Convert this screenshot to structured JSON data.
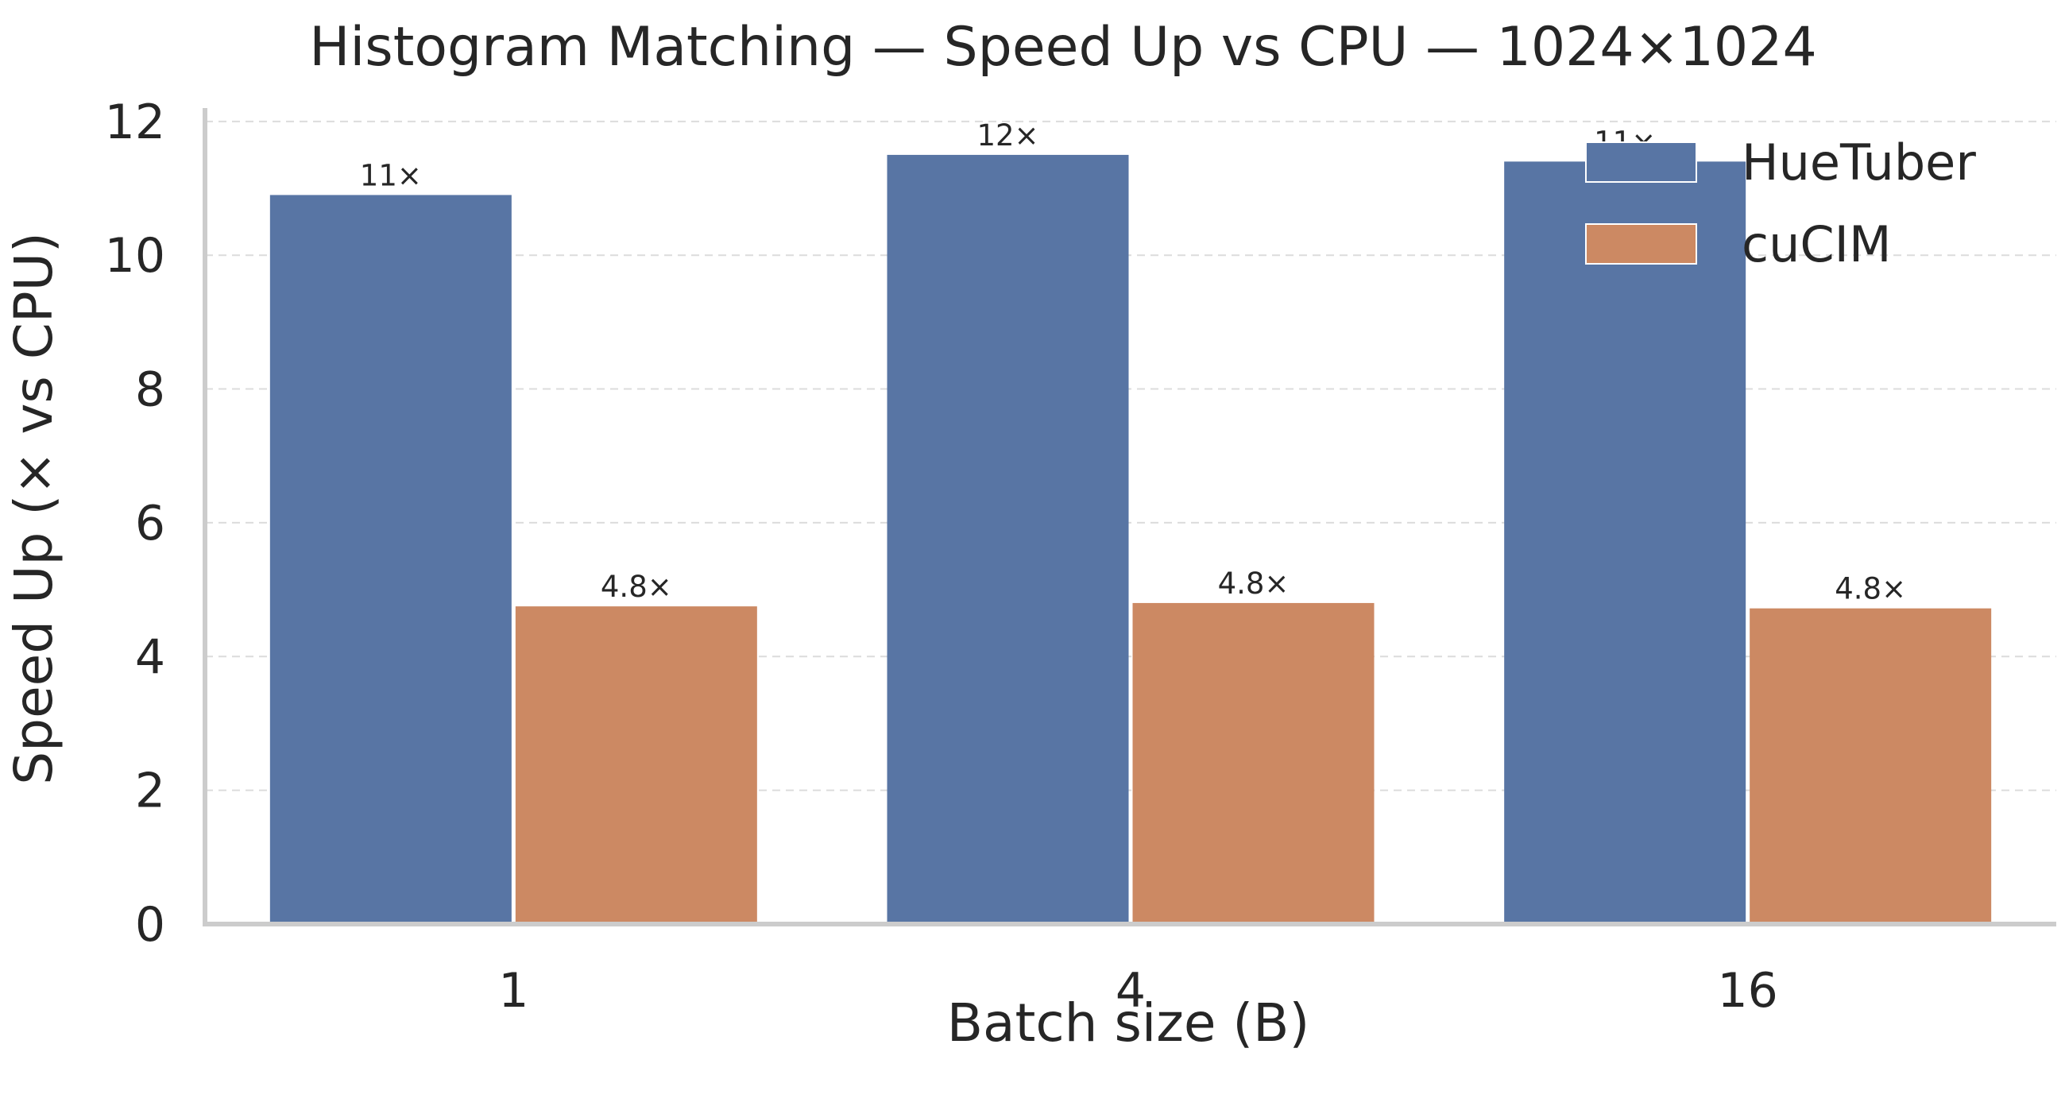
{
  "chart_data": {
    "type": "bar",
    "title": "Histogram Matching — Speed Up vs CPU — 1024×1024",
    "xlabel": "Batch size (B)",
    "ylabel": "Speed Up (× vs CPU)",
    "categories": [
      "1",
      "4",
      "16"
    ],
    "ylim": [
      0,
      12.2
    ],
    "yticks": [
      0,
      2,
      4,
      6,
      8,
      10,
      12
    ],
    "grid": "y-dashed",
    "legend_position": "top-right",
    "series": [
      {
        "name": "HueTuber",
        "color": "#5875a4",
        "values": [
          10.9,
          11.5,
          11.4
        ],
        "labels": [
          "11×",
          "12×",
          "11×"
        ]
      },
      {
        "name": "cuCIM",
        "color": "#cc8963",
        "values": [
          4.75,
          4.8,
          4.72
        ],
        "labels": [
          "4.8×",
          "4.8×",
          "4.8×"
        ]
      }
    ]
  }
}
